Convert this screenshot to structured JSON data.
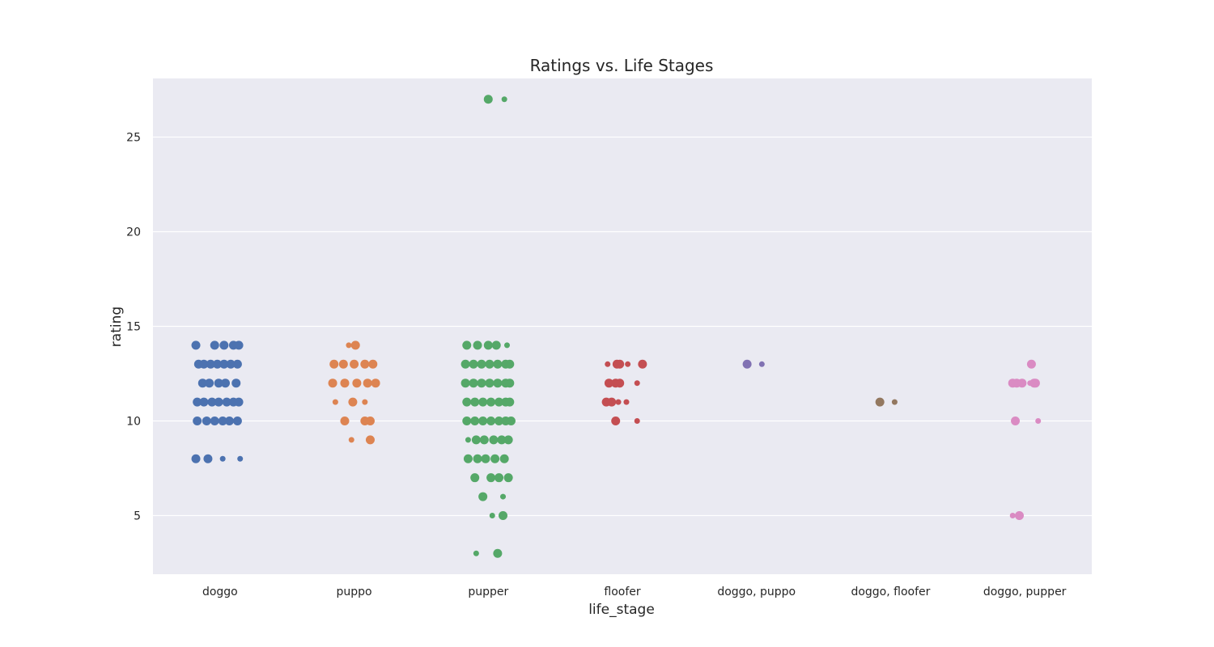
{
  "chart_data": {
    "type": "scatter",
    "title": "Ratings vs. Life Stages",
    "xlabel": "life_stage",
    "ylabel": "rating",
    "categories": [
      "doggo",
      "puppo",
      "pupper",
      "floofer",
      "doggo, puppo",
      "doggo, floofer",
      "doggo, pupper"
    ],
    "ylim": [
      1.9,
      28.1
    ],
    "yticks": [
      5,
      10,
      15,
      20,
      25
    ],
    "grid": true,
    "background": "#eaeaf2",
    "gridColor": "#ffffff",
    "colors": [
      "#4c72b0",
      "#dd8452",
      "#55a868",
      "#c44e52",
      "#8172b3",
      "#937860",
      "#da8bc3"
    ],
    "series": [
      {
        "category": "doggo",
        "points": [
          {
            "offset": -0.18,
            "y": 14,
            "size": "large"
          },
          {
            "offset": -0.04,
            "y": 14,
            "size": "large"
          },
          {
            "offset": 0.03,
            "y": 14,
            "size": "large"
          },
          {
            "offset": 0.1,
            "y": 14,
            "size": "large"
          },
          {
            "offset": 0.14,
            "y": 14,
            "size": "large"
          },
          {
            "offset": -0.16,
            "y": 13,
            "size": "large"
          },
          {
            "offset": -0.12,
            "y": 13,
            "size": "large"
          },
          {
            "offset": -0.07,
            "y": 13,
            "size": "large"
          },
          {
            "offset": -0.02,
            "y": 13,
            "size": "large"
          },
          {
            "offset": 0.03,
            "y": 13,
            "size": "large"
          },
          {
            "offset": 0.08,
            "y": 13,
            "size": "large"
          },
          {
            "offset": 0.13,
            "y": 13,
            "size": "large"
          },
          {
            "offset": -0.13,
            "y": 12,
            "size": "large"
          },
          {
            "offset": -0.08,
            "y": 12,
            "size": "large"
          },
          {
            "offset": -0.01,
            "y": 12,
            "size": "large"
          },
          {
            "offset": 0.04,
            "y": 12,
            "size": "large"
          },
          {
            "offset": 0.12,
            "y": 12,
            "size": "large"
          },
          {
            "offset": -0.17,
            "y": 11,
            "size": "large"
          },
          {
            "offset": -0.12,
            "y": 11,
            "size": "large"
          },
          {
            "offset": -0.06,
            "y": 11,
            "size": "large"
          },
          {
            "offset": -0.01,
            "y": 11,
            "size": "large"
          },
          {
            "offset": 0.05,
            "y": 11,
            "size": "large"
          },
          {
            "offset": 0.1,
            "y": 11,
            "size": "large"
          },
          {
            "offset": 0.14,
            "y": 11,
            "size": "large"
          },
          {
            "offset": -0.17,
            "y": 10,
            "size": "large"
          },
          {
            "offset": -0.1,
            "y": 10,
            "size": "large"
          },
          {
            "offset": -0.04,
            "y": 10,
            "size": "large"
          },
          {
            "offset": 0.02,
            "y": 10,
            "size": "large"
          },
          {
            "offset": 0.07,
            "y": 10,
            "size": "large"
          },
          {
            "offset": 0.13,
            "y": 10,
            "size": "large"
          },
          {
            "offset": -0.18,
            "y": 8,
            "size": "large"
          },
          {
            "offset": -0.09,
            "y": 8,
            "size": "large"
          },
          {
            "offset": 0.02,
            "y": 8,
            "size": "small"
          },
          {
            "offset": 0.15,
            "y": 8,
            "size": "small"
          }
        ]
      },
      {
        "category": "puppo",
        "points": [
          {
            "offset": -0.04,
            "y": 14,
            "size": "small"
          },
          {
            "offset": 0.01,
            "y": 14,
            "size": "large"
          },
          {
            "offset": -0.15,
            "y": 13,
            "size": "large"
          },
          {
            "offset": -0.08,
            "y": 13,
            "size": "large"
          },
          {
            "offset": 0.0,
            "y": 13,
            "size": "large"
          },
          {
            "offset": 0.08,
            "y": 13,
            "size": "large"
          },
          {
            "offset": 0.14,
            "y": 13,
            "size": "large"
          },
          {
            "offset": -0.16,
            "y": 12,
            "size": "large"
          },
          {
            "offset": -0.07,
            "y": 12,
            "size": "large"
          },
          {
            "offset": 0.02,
            "y": 12,
            "size": "large"
          },
          {
            "offset": 0.1,
            "y": 12,
            "size": "large"
          },
          {
            "offset": 0.16,
            "y": 12,
            "size": "large"
          },
          {
            "offset": -0.14,
            "y": 11,
            "size": "small"
          },
          {
            "offset": -0.01,
            "y": 11,
            "size": "large"
          },
          {
            "offset": 0.08,
            "y": 11,
            "size": "small"
          },
          {
            "offset": -0.07,
            "y": 10,
            "size": "large"
          },
          {
            "offset": 0.08,
            "y": 10,
            "size": "large"
          },
          {
            "offset": 0.12,
            "y": 10,
            "size": "large"
          },
          {
            "offset": -0.02,
            "y": 9,
            "size": "small"
          },
          {
            "offset": 0.12,
            "y": 9,
            "size": "large"
          }
        ]
      },
      {
        "category": "pupper",
        "points": [
          {
            "offset": 0.0,
            "y": 27,
            "size": "large"
          },
          {
            "offset": 0.12,
            "y": 27,
            "size": "small"
          },
          {
            "offset": -0.16,
            "y": 14,
            "size": "large"
          },
          {
            "offset": -0.08,
            "y": 14,
            "size": "large"
          },
          {
            "offset": 0.0,
            "y": 14,
            "size": "large"
          },
          {
            "offset": 0.06,
            "y": 14,
            "size": "large"
          },
          {
            "offset": 0.14,
            "y": 14,
            "size": "small"
          },
          {
            "offset": -0.17,
            "y": 13,
            "size": "large"
          },
          {
            "offset": -0.11,
            "y": 13,
            "size": "large"
          },
          {
            "offset": -0.05,
            "y": 13,
            "size": "large"
          },
          {
            "offset": 0.01,
            "y": 13,
            "size": "large"
          },
          {
            "offset": 0.07,
            "y": 13,
            "size": "large"
          },
          {
            "offset": 0.13,
            "y": 13,
            "size": "large"
          },
          {
            "offset": 0.16,
            "y": 13,
            "size": "large"
          },
          {
            "offset": -0.17,
            "y": 12,
            "size": "large"
          },
          {
            "offset": -0.11,
            "y": 12,
            "size": "large"
          },
          {
            "offset": -0.05,
            "y": 12,
            "size": "large"
          },
          {
            "offset": 0.01,
            "y": 12,
            "size": "large"
          },
          {
            "offset": 0.07,
            "y": 12,
            "size": "large"
          },
          {
            "offset": 0.13,
            "y": 12,
            "size": "large"
          },
          {
            "offset": 0.16,
            "y": 12,
            "size": "large"
          },
          {
            "offset": -0.16,
            "y": 11,
            "size": "large"
          },
          {
            "offset": -0.1,
            "y": 11,
            "size": "large"
          },
          {
            "offset": -0.04,
            "y": 11,
            "size": "large"
          },
          {
            "offset": 0.02,
            "y": 11,
            "size": "large"
          },
          {
            "offset": 0.08,
            "y": 11,
            "size": "large"
          },
          {
            "offset": 0.13,
            "y": 11,
            "size": "large"
          },
          {
            "offset": 0.16,
            "y": 11,
            "size": "large"
          },
          {
            "offset": -0.16,
            "y": 10,
            "size": "large"
          },
          {
            "offset": -0.1,
            "y": 10,
            "size": "large"
          },
          {
            "offset": -0.04,
            "y": 10,
            "size": "large"
          },
          {
            "offset": 0.02,
            "y": 10,
            "size": "large"
          },
          {
            "offset": 0.08,
            "y": 10,
            "size": "large"
          },
          {
            "offset": 0.13,
            "y": 10,
            "size": "large"
          },
          {
            "offset": 0.17,
            "y": 10,
            "size": "large"
          },
          {
            "offset": -0.15,
            "y": 9,
            "size": "small"
          },
          {
            "offset": -0.09,
            "y": 9,
            "size": "large"
          },
          {
            "offset": -0.03,
            "y": 9,
            "size": "large"
          },
          {
            "offset": 0.04,
            "y": 9,
            "size": "large"
          },
          {
            "offset": 0.1,
            "y": 9,
            "size": "large"
          },
          {
            "offset": 0.15,
            "y": 9,
            "size": "large"
          },
          {
            "offset": -0.15,
            "y": 8,
            "size": "large"
          },
          {
            "offset": -0.08,
            "y": 8,
            "size": "large"
          },
          {
            "offset": -0.02,
            "y": 8,
            "size": "large"
          },
          {
            "offset": 0.05,
            "y": 8,
            "size": "large"
          },
          {
            "offset": 0.12,
            "y": 8,
            "size": "large"
          },
          {
            "offset": -0.1,
            "y": 7,
            "size": "large"
          },
          {
            "offset": 0.02,
            "y": 7,
            "size": "large"
          },
          {
            "offset": 0.08,
            "y": 7,
            "size": "large"
          },
          {
            "offset": 0.15,
            "y": 7,
            "size": "large"
          },
          {
            "offset": -0.04,
            "y": 6,
            "size": "large"
          },
          {
            "offset": 0.11,
            "y": 6,
            "size": "small"
          },
          {
            "offset": 0.03,
            "y": 5,
            "size": "small"
          },
          {
            "offset": 0.11,
            "y": 5,
            "size": "large"
          },
          {
            "offset": -0.09,
            "y": 3,
            "size": "small"
          },
          {
            "offset": 0.07,
            "y": 3,
            "size": "large"
          }
        ]
      },
      {
        "category": "floofer",
        "points": [
          {
            "offset": -0.11,
            "y": 13,
            "size": "small"
          },
          {
            "offset": -0.04,
            "y": 13,
            "size": "large"
          },
          {
            "offset": -0.02,
            "y": 13,
            "size": "large"
          },
          {
            "offset": 0.04,
            "y": 13,
            "size": "small"
          },
          {
            "offset": 0.15,
            "y": 13,
            "size": "large"
          },
          {
            "offset": -0.1,
            "y": 12,
            "size": "large"
          },
          {
            "offset": -0.05,
            "y": 12,
            "size": "large"
          },
          {
            "offset": -0.02,
            "y": 12,
            "size": "large"
          },
          {
            "offset": 0.11,
            "y": 12,
            "size": "small"
          },
          {
            "offset": -0.12,
            "y": 11,
            "size": "large"
          },
          {
            "offset": -0.08,
            "y": 11,
            "size": "large"
          },
          {
            "offset": -0.03,
            "y": 11,
            "size": "small"
          },
          {
            "offset": 0.03,
            "y": 11,
            "size": "small"
          },
          {
            "offset": -0.05,
            "y": 10,
            "size": "large"
          },
          {
            "offset": 0.11,
            "y": 10,
            "size": "small"
          }
        ]
      },
      {
        "category": "doggo, puppo",
        "points": [
          {
            "offset": -0.07,
            "y": 13,
            "size": "large"
          },
          {
            "offset": 0.04,
            "y": 13,
            "size": "small"
          }
        ]
      },
      {
        "category": "doggo, floofer",
        "points": [
          {
            "offset": -0.08,
            "y": 11,
            "size": "large"
          },
          {
            "offset": 0.03,
            "y": 11,
            "size": "small"
          }
        ]
      },
      {
        "category": "doggo, pupper",
        "points": [
          {
            "offset": 0.05,
            "y": 13,
            "size": "large"
          },
          {
            "offset": -0.09,
            "y": 12,
            "size": "large"
          },
          {
            "offset": -0.06,
            "y": 12,
            "size": "large"
          },
          {
            "offset": -0.02,
            "y": 12,
            "size": "large"
          },
          {
            "offset": 0.04,
            "y": 12,
            "size": "small"
          },
          {
            "offset": 0.07,
            "y": 12,
            "size": "large"
          },
          {
            "offset": 0.08,
            "y": 12,
            "size": "large"
          },
          {
            "offset": -0.07,
            "y": 10,
            "size": "large"
          },
          {
            "offset": 0.1,
            "y": 10,
            "size": "small"
          },
          {
            "offset": -0.09,
            "y": 5,
            "size": "small"
          },
          {
            "offset": -0.04,
            "y": 5,
            "size": "large"
          }
        ]
      }
    ]
  }
}
